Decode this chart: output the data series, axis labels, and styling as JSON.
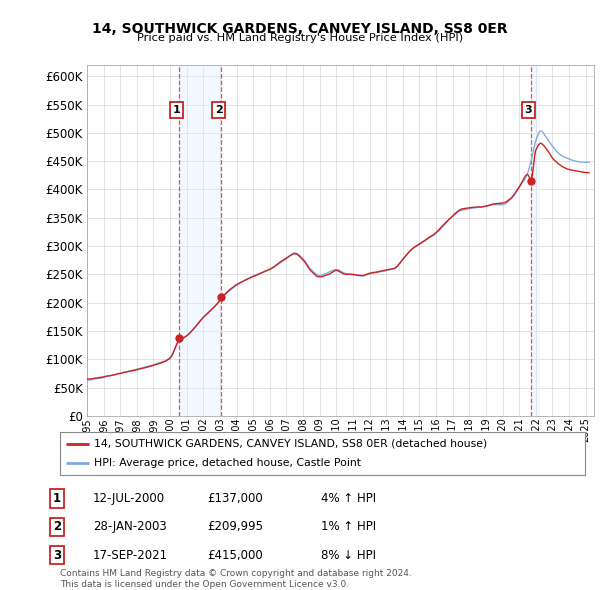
{
  "title": "14, SOUTHWICK GARDENS, CANVEY ISLAND, SS8 0ER",
  "subtitle": "Price paid vs. HM Land Registry's House Price Index (HPI)",
  "ylim": [
    0,
    620000
  ],
  "yticks": [
    0,
    50000,
    100000,
    150000,
    200000,
    250000,
    300000,
    350000,
    400000,
    450000,
    500000,
    550000,
    600000
  ],
  "xmin": 1995.0,
  "xmax": 2025.5,
  "sale_dates": [
    2000.53,
    2003.07,
    2021.71
  ],
  "sale_prices": [
    137000,
    209995,
    415000
  ],
  "sale_labels": [
    "1",
    "2",
    "3"
  ],
  "hpi_line_color": "#7aabdc",
  "price_line_color": "#cc2222",
  "sale_marker_color": "#cc2222",
  "sale_label_border": "#cc2222",
  "shading_color": "#ddeeff",
  "legend_line1": "14, SOUTHWICK GARDENS, CANVEY ISLAND, SS8 0ER (detached house)",
  "legend_line2": "HPI: Average price, detached house, Castle Point",
  "table_rows": [
    [
      "1",
      "12-JUL-2000",
      "£137,000",
      "4% ↑ HPI"
    ],
    [
      "2",
      "28-JAN-2003",
      "£209,995",
      "1% ↑ HPI"
    ],
    [
      "3",
      "17-SEP-2021",
      "£415,000",
      "8% ↓ HPI"
    ]
  ],
  "footer": "Contains HM Land Registry data © Crown copyright and database right 2024.\nThis data is licensed under the Open Government Licence v3.0.",
  "background_color": "#ffffff",
  "grid_color": "#cccccc",
  "hpi_keypoints": [
    [
      1995.0,
      63000
    ],
    [
      1996.0,
      68000
    ],
    [
      1997.0,
      75000
    ],
    [
      1998.0,
      82000
    ],
    [
      1999.0,
      90000
    ],
    [
      2000.0,
      103000
    ],
    [
      2000.53,
      132000
    ],
    [
      2001.0,
      142000
    ],
    [
      2002.0,
      175000
    ],
    [
      2003.0,
      205000
    ],
    [
      2003.07,
      208000
    ],
    [
      2004.0,
      232000
    ],
    [
      2005.0,
      248000
    ],
    [
      2006.0,
      260000
    ],
    [
      2007.0,
      278000
    ],
    [
      2007.5,
      288000
    ],
    [
      2008.0,
      278000
    ],
    [
      2008.5,
      258000
    ],
    [
      2009.0,
      248000
    ],
    [
      2009.5,
      253000
    ],
    [
      2010.0,
      258000
    ],
    [
      2010.5,
      252000
    ],
    [
      2011.0,
      250000
    ],
    [
      2011.5,
      248000
    ],
    [
      2012.0,
      252000
    ],
    [
      2012.5,
      255000
    ],
    [
      2013.0,
      258000
    ],
    [
      2013.5,
      262000
    ],
    [
      2014.0,
      278000
    ],
    [
      2014.5,
      295000
    ],
    [
      2015.0,
      305000
    ],
    [
      2015.5,
      315000
    ],
    [
      2016.0,
      325000
    ],
    [
      2016.5,
      340000
    ],
    [
      2017.0,
      355000
    ],
    [
      2017.5,
      365000
    ],
    [
      2018.0,
      368000
    ],
    [
      2018.5,
      370000
    ],
    [
      2019.0,
      372000
    ],
    [
      2019.5,
      375000
    ],
    [
      2020.0,
      375000
    ],
    [
      2020.5,
      385000
    ],
    [
      2021.0,
      405000
    ],
    [
      2021.5,
      430000
    ],
    [
      2021.71,
      452000
    ],
    [
      2022.0,
      488000
    ],
    [
      2022.3,
      505000
    ],
    [
      2022.6,
      495000
    ],
    [
      2023.0,
      478000
    ],
    [
      2023.5,
      462000
    ],
    [
      2024.0,
      455000
    ],
    [
      2024.5,
      450000
    ],
    [
      2025.0,
      448000
    ]
  ],
  "price_keypoints": [
    [
      1995.0,
      65000
    ],
    [
      1996.0,
      70000
    ],
    [
      1997.0,
      76000
    ],
    [
      1998.0,
      83000
    ],
    [
      1999.0,
      91000
    ],
    [
      2000.0,
      105000
    ],
    [
      2000.53,
      137000
    ],
    [
      2001.0,
      145000
    ],
    [
      2002.0,
      177000
    ],
    [
      2003.0,
      207000
    ],
    [
      2003.07,
      209995
    ],
    [
      2004.0,
      234000
    ],
    [
      2005.0,
      248000
    ],
    [
      2006.0,
      261000
    ],
    [
      2007.0,
      280000
    ],
    [
      2007.5,
      287000
    ],
    [
      2008.0,
      275000
    ],
    [
      2008.5,
      255000
    ],
    [
      2009.0,
      245000
    ],
    [
      2009.5,
      250000
    ],
    [
      2010.0,
      257000
    ],
    [
      2010.5,
      250000
    ],
    [
      2011.0,
      249000
    ],
    [
      2011.5,
      247000
    ],
    [
      2012.0,
      251000
    ],
    [
      2012.5,
      254000
    ],
    [
      2013.0,
      257000
    ],
    [
      2013.5,
      260000
    ],
    [
      2014.0,
      276000
    ],
    [
      2014.5,
      293000
    ],
    [
      2015.0,
      303000
    ],
    [
      2015.5,
      313000
    ],
    [
      2016.0,
      323000
    ],
    [
      2016.5,
      338000
    ],
    [
      2017.0,
      352000
    ],
    [
      2017.5,
      363000
    ],
    [
      2018.0,
      366000
    ],
    [
      2018.5,
      368000
    ],
    [
      2019.0,
      370000
    ],
    [
      2019.5,
      373000
    ],
    [
      2020.0,
      374000
    ],
    [
      2020.5,
      383000
    ],
    [
      2021.0,
      403000
    ],
    [
      2021.5,
      425000
    ],
    [
      2021.71,
      415000
    ],
    [
      2022.0,
      468000
    ],
    [
      2022.3,
      480000
    ],
    [
      2022.6,
      472000
    ],
    [
      2023.0,
      455000
    ],
    [
      2023.5,
      442000
    ],
    [
      2024.0,
      435000
    ],
    [
      2024.5,
      432000
    ],
    [
      2025.0,
      430000
    ]
  ]
}
